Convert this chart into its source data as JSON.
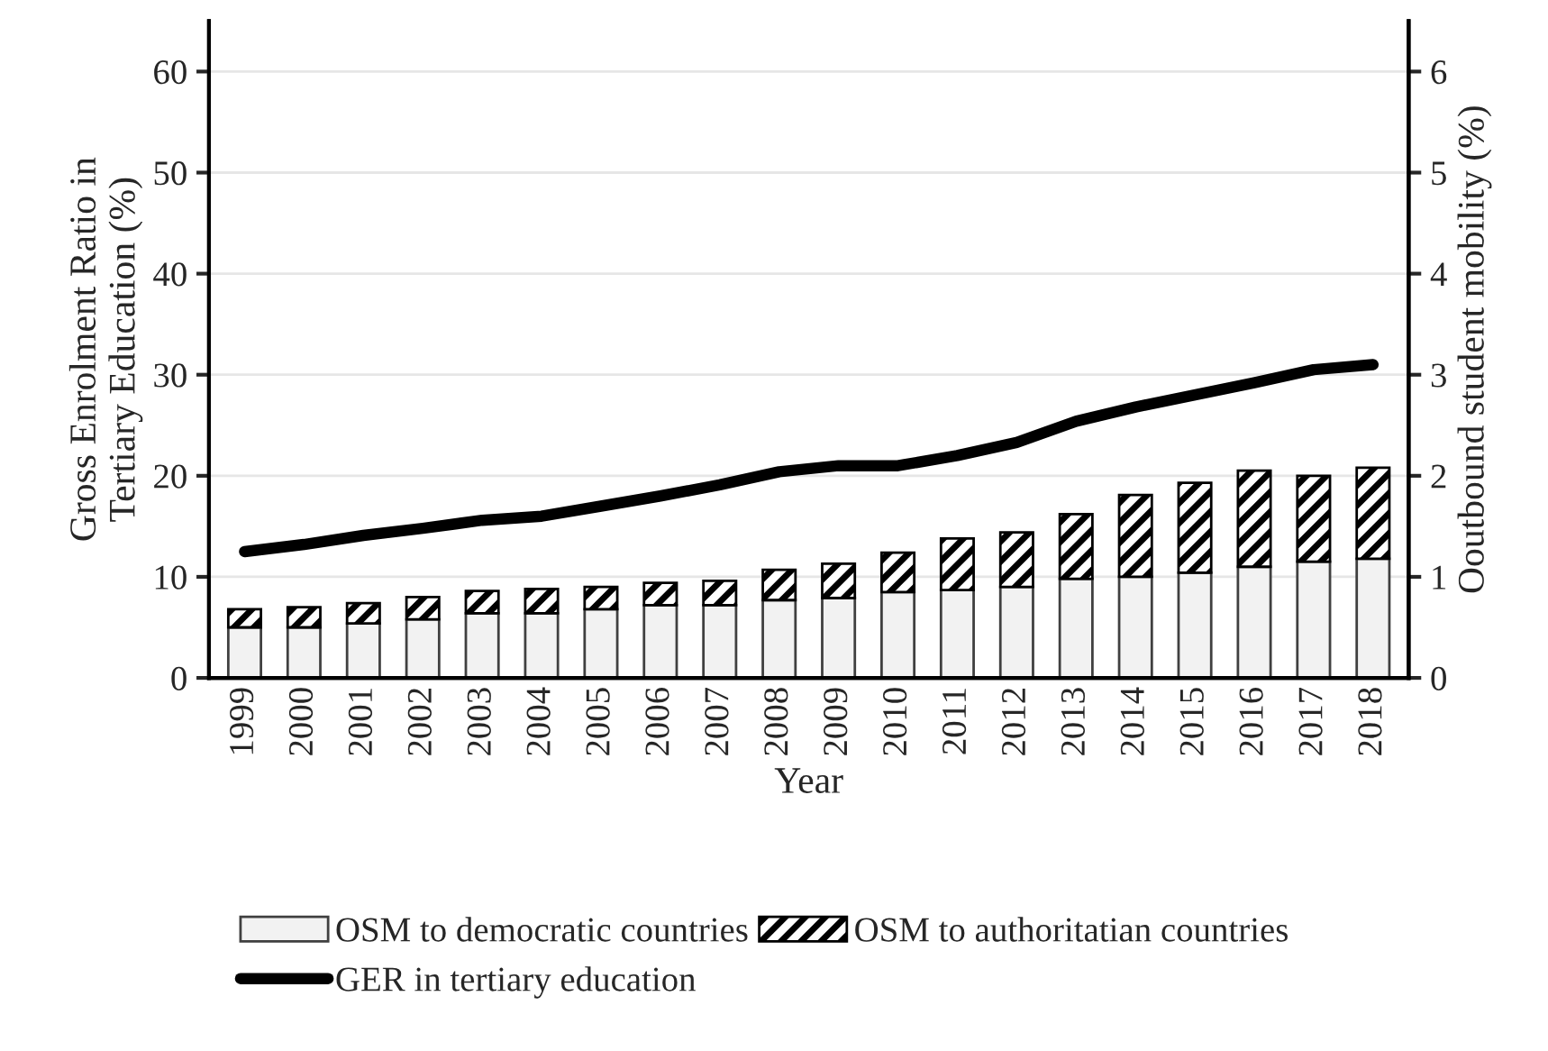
{
  "chart_data": {
    "type": "bar",
    "stacked": true,
    "xlabel": "Year",
    "ylabel": "Gross Enrolment Ratio in\nTertiary Education (%)",
    "y2label": "Ooutbound student mobility (%)",
    "categories": [
      "1999",
      "2000",
      "2001",
      "2002",
      "2003",
      "2004",
      "2005",
      "2006",
      "2007",
      "2008",
      "2009",
      "2010",
      "2011",
      "2012",
      "2013",
      "2014",
      "2015",
      "2016",
      "2017",
      "2018"
    ],
    "series": [
      {
        "name": "OSM to democratic countries",
        "color": "#f2f2f2",
        "axis": "y2",
        "values": [
          0.5,
          0.5,
          0.54,
          0.58,
          0.64,
          0.64,
          0.68,
          0.72,
          0.72,
          0.77,
          0.79,
          0.85,
          0.87,
          0.9,
          0.98,
          1.0,
          1.04,
          1.1,
          1.15,
          1.18
        ]
      },
      {
        "name": "OSM to authoritatian countries",
        "color": "#000000",
        "axis": "y2",
        "values": [
          0.18,
          0.2,
          0.2,
          0.22,
          0.22,
          0.24,
          0.22,
          0.22,
          0.24,
          0.3,
          0.34,
          0.39,
          0.51,
          0.54,
          0.64,
          0.81,
          0.89,
          0.95,
          0.85,
          0.9
        ]
      },
      {
        "name": "GER in tertiary education",
        "type": "line",
        "color": "#000000",
        "values": [
          12.5,
          13.2,
          14.1,
          14.8,
          15.6,
          16.0,
          17.0,
          18.0,
          19.1,
          20.4,
          21.0,
          21.0,
          22.0,
          23.3,
          25.4,
          26.8,
          28.0,
          29.2,
          30.5,
          31.0
        ]
      }
    ],
    "ylim": [
      0,
      65
    ],
    "yticks": [
      0,
      10,
      20,
      30,
      40,
      50,
      60
    ],
    "y2lim": [
      0,
      6.5
    ],
    "y2ticks": [
      0,
      1,
      2,
      3,
      4,
      5,
      6
    ],
    "grid": "y",
    "legend": "bottom"
  }
}
